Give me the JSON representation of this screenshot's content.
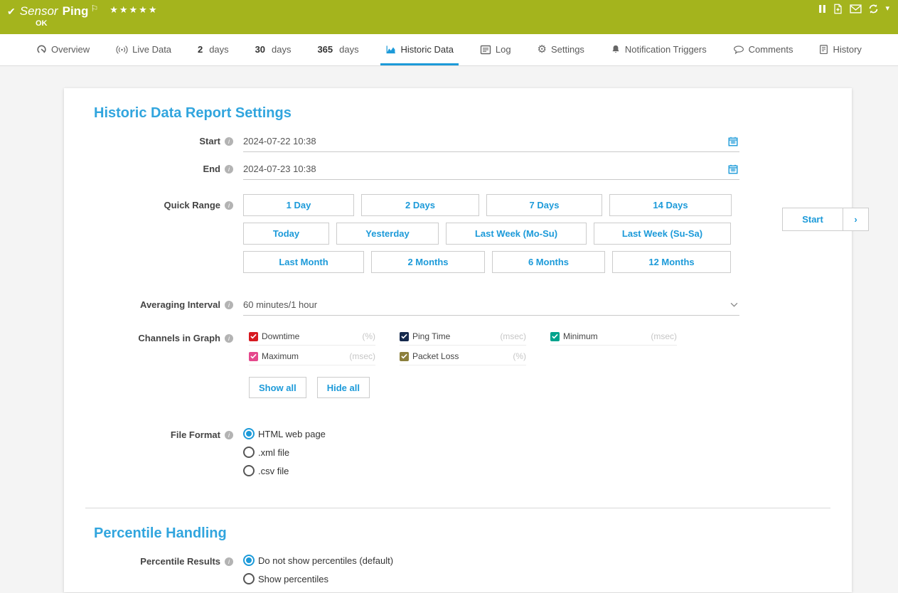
{
  "colors": {
    "accent_green": "#a4b41d",
    "accent_blue": "#1c9ad9",
    "title_blue": "#31a5de"
  },
  "topbar": {
    "sensor_label": "Sensor",
    "sensor_name": "Ping",
    "status": "OK",
    "stars": "★★★★★",
    "action_icons": [
      "pause",
      "add-report",
      "email",
      "refresh"
    ]
  },
  "tabs": [
    {
      "icon": "gauge",
      "label": "Overview"
    },
    {
      "icon": "signal",
      "label": "Live Data"
    },
    {
      "bold": "2",
      "label": "days"
    },
    {
      "bold": "30",
      "label": "days"
    },
    {
      "bold": "365",
      "label": "days"
    },
    {
      "icon": "chart",
      "label": "Historic Data",
      "active": true
    },
    {
      "icon": "log",
      "label": "Log"
    },
    {
      "icon": "gear",
      "label": "Settings"
    },
    {
      "icon": "bell",
      "label": "Notification Triggers"
    },
    {
      "icon": "comment",
      "label": "Comments"
    },
    {
      "icon": "history",
      "label": "History"
    }
  ],
  "report": {
    "section_title": "Historic Data Report Settings",
    "start": {
      "label": "Start",
      "value": "2024-07-22 10:38"
    },
    "end": {
      "label": "End",
      "value": "2024-07-23 10:38"
    },
    "quick_range": {
      "label": "Quick Range",
      "rows": [
        [
          "1 Day",
          "2 Days",
          "7 Days",
          "14 Days"
        ],
        [
          "Today",
          "Yesterday",
          "Last Week (Mo-Su)",
          "Last Week (Su-Sa)"
        ],
        [
          "Last Month",
          "2 Months",
          "6 Months",
          "12 Months"
        ]
      ]
    },
    "averaging_interval": {
      "label": "Averaging Interval",
      "value": "60 minutes/1 hour"
    },
    "channels": {
      "label": "Channels in Graph",
      "items": [
        {
          "name": "Downtime",
          "unit": "(%)",
          "color": "#d71920",
          "checked": true
        },
        {
          "name": "Ping Time",
          "unit": "(msec)",
          "color": "#15294d",
          "checked": true
        },
        {
          "name": "Minimum",
          "unit": "(msec)",
          "color": "#00a38d",
          "checked": true
        },
        {
          "name": "Maximum",
          "unit": "(msec)",
          "color": "#e5498d",
          "checked": true
        },
        {
          "name": "Packet Loss",
          "unit": "(%)",
          "color": "#8b7f3c",
          "checked": true
        }
      ],
      "show_all": "Show all",
      "hide_all": "Hide all"
    },
    "file_format": {
      "label": "File Format",
      "options": [
        {
          "label": "HTML web page",
          "selected": true
        },
        {
          "label": ".xml file",
          "selected": false
        },
        {
          "label": ".csv file",
          "selected": false
        }
      ]
    }
  },
  "percentile": {
    "section_title": "Percentile Handling",
    "results_label": "Percentile Results",
    "options": [
      {
        "label": "Do not show percentiles (default)",
        "selected": true
      },
      {
        "label": "Show percentiles",
        "selected": false
      }
    ]
  },
  "start_panel": {
    "label": "Start",
    "chevron": "›"
  }
}
